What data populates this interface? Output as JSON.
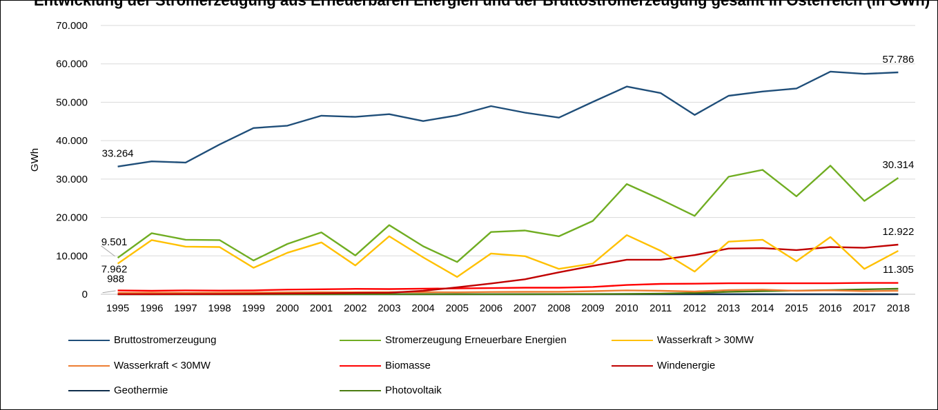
{
  "chart_data": {
    "type": "line",
    "title": "Entwicklung der Stromerzeugung aus Erneuerbaren Energien und der Bruttostromerzeugung gesamt in Österreich (in GWh)",
    "ylabel": "GWh",
    "xlabel": "",
    "ylim": [
      0,
      70000
    ],
    "yticks": [
      "0",
      "10.000",
      "20.000",
      "30.000",
      "40.000",
      "50.000",
      "60.000",
      "70.000"
    ],
    "ytick_values": [
      0,
      10000,
      20000,
      30000,
      40000,
      50000,
      60000,
      70000
    ],
    "grid": true,
    "legend_position": "bottom",
    "x": [
      "1995",
      "1996",
      "1997",
      "1998",
      "1999",
      "2000",
      "2001",
      "2002",
      "2003",
      "2004",
      "2005",
      "2006",
      "2007",
      "2008",
      "2009",
      "2010",
      "2011",
      "2012",
      "2013",
      "2014",
      "2015",
      "2016",
      "2017",
      "2018"
    ],
    "series": [
      {
        "name": "Bruttostromerzeugung",
        "color": "#1f4e79",
        "values": [
          33264,
          34600,
          34300,
          39000,
          43300,
          43900,
          46500,
          46200,
          46900,
          45100,
          46600,
          49000,
          47300,
          46000,
          50100,
          54100,
          52400,
          46700,
          51700,
          52800,
          53600,
          58000,
          57400,
          57786
        ]
      },
      {
        "name": "Stromerzeugung Erneuerbare Energien",
        "color": "#70ad22",
        "values": [
          9501,
          15900,
          14200,
          14100,
          8800,
          13100,
          16100,
          10100,
          18000,
          12500,
          8400,
          16200,
          16600,
          15100,
          19100,
          28700,
          24700,
          20400,
          30600,
          32400,
          25500,
          33500,
          24300,
          30314
        ]
      },
      {
        "name": "Wasserkraft > 30MW",
        "color": "#ffc000",
        "values": [
          7962,
          14100,
          12400,
          12300,
          6900,
          10800,
          13500,
          7500,
          15100,
          9600,
          4500,
          10600,
          9900,
          6600,
          8000,
          15400,
          11300,
          5900,
          13700,
          14200,
          8600,
          14900,
          6600,
          11305
        ]
      },
      {
        "name": "Wasserkraft < 30MW",
        "color": "#ed7d31",
        "values": [
          350,
          400,
          380,
          420,
          450,
          500,
          550,
          520,
          560,
          540,
          500,
          600,
          620,
          650,
          800,
          1000,
          900,
          700,
          1100,
          1200,
          900,
          1000,
          800,
          900
        ]
      },
      {
        "name": "Biomasse",
        "color": "#ff0000",
        "values": [
          988,
          900,
          1000,
          950,
          1000,
          1200,
          1300,
          1400,
          1350,
          1450,
          1500,
          1600,
          1700,
          1700,
          1900,
          2400,
          2700,
          2750,
          2850,
          2850,
          2850,
          2850,
          2950,
          2950
        ]
      },
      {
        "name": "Windenergie",
        "color": "#c00000",
        "values": [
          10,
          20,
          30,
          60,
          100,
          200,
          250,
          350,
          400,
          900,
          1800,
          2800,
          3900,
          5700,
          7400,
          9000,
          9000,
          10200,
          11900,
          12000,
          11500,
          12300,
          12100,
          12922
        ]
      },
      {
        "name": "Geothermie",
        "color": "#0d2c4a",
        "values": [
          1,
          1,
          1,
          1,
          1,
          1,
          1,
          1,
          2,
          2,
          2,
          2,
          2,
          2,
          2,
          2,
          2,
          2,
          1,
          1,
          1,
          1,
          1,
          1
        ]
      },
      {
        "name": "Photovoltaik",
        "color": "#4a7b10",
        "values": [
          0,
          0,
          0,
          0,
          0,
          0,
          0,
          10,
          15,
          20,
          20,
          20,
          20,
          30,
          50,
          90,
          170,
          340,
          620,
          790,
          940,
          1100,
          1270,
          1440
        ]
      }
    ],
    "data_labels": [
      {
        "text": "57.786",
        "series": 0,
        "index": 23
      },
      {
        "text": "33.264",
        "series": 0,
        "index": 0
      },
      {
        "text": "30.314",
        "series": 1,
        "index": 23
      },
      {
        "text": "9.501",
        "series": 1,
        "index": 0
      },
      {
        "text": "12.922",
        "series": 5,
        "index": 23
      },
      {
        "text": "11.305",
        "series": 2,
        "index": 23
      },
      {
        "text": "7.962",
        "series": 2,
        "index": 0
      },
      {
        "text": "988",
        "series": 4,
        "index": 0
      }
    ]
  }
}
